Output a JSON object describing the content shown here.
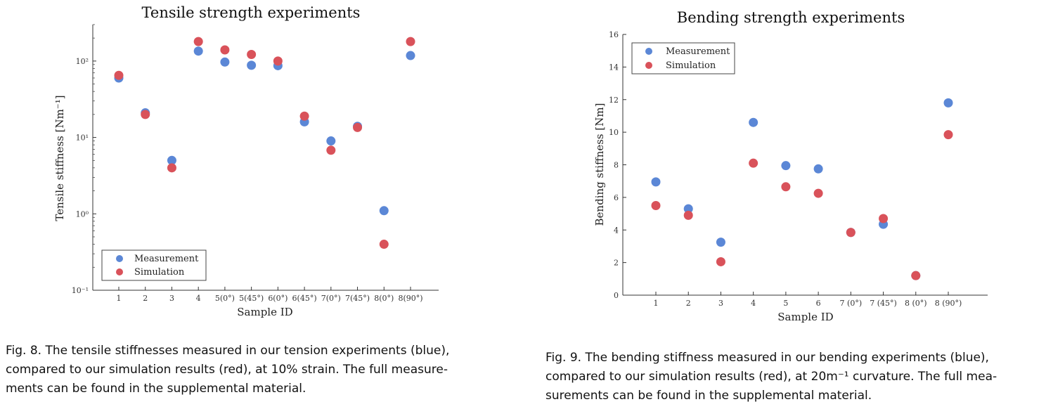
{
  "chart_data": [
    {
      "type": "scatter",
      "title": "Tensile strength experiments",
      "xlabel": "Sample ID",
      "ylabel": "Tensile stiffness [Nm⁻¹]",
      "yscale": "log",
      "ylim": [
        0.1,
        300
      ],
      "yticks": [
        0.1,
        1,
        10,
        100
      ],
      "ytick_labels": [
        "10⁻¹",
        "10⁰",
        "10¹",
        "10²"
      ],
      "categories": [
        "1",
        "2",
        "3",
        "4",
        "5(0°)",
        "5(45°)",
        "6(0°)",
        "6(45°)",
        "7(0°)",
        "7(45°)",
        "8(0°)",
        "8(90°)"
      ],
      "legend_position": "bottom-left",
      "grid": false,
      "series": [
        {
          "name": "Measurement",
          "color": "#5b87d6",
          "values": [
            60,
            21,
            5,
            135,
            97,
            88,
            87,
            16,
            9,
            14,
            1.1,
            118
          ]
        },
        {
          "name": "Simulation",
          "color": "#d9525a",
          "values": [
            65,
            20,
            4,
            180,
            140,
            122,
            100,
            19,
            6.8,
            13.5,
            0.4,
            180
          ]
        }
      ]
    },
    {
      "type": "scatter",
      "title": "Bending strength experiments",
      "xlabel": "Sample ID",
      "ylabel": "Bending stiffness [Nm]",
      "yscale": "linear",
      "ylim": [
        0,
        16
      ],
      "yticks": [
        0,
        2,
        4,
        6,
        8,
        10,
        12,
        14,
        16
      ],
      "ytick_labels": [
        "0",
        "2",
        "4",
        "6",
        "8",
        "10",
        "12",
        "14",
        "16"
      ],
      "categories": [
        "1",
        "2",
        "3",
        "4",
        "5",
        "6",
        "7 (0°)",
        "7 (45°)",
        "8 (0°)",
        "8 (90°)"
      ],
      "legend_position": "top-left",
      "grid": false,
      "series": [
        {
          "name": "Measurement",
          "color": "#5b87d6",
          "values": [
            6.95,
            5.3,
            3.25,
            10.6,
            7.95,
            7.75,
            3.85,
            4.35,
            1.2,
            11.8
          ]
        },
        {
          "name": "Simulation",
          "color": "#d9525a",
          "values": [
            5.5,
            4.9,
            2.05,
            8.1,
            6.65,
            6.25,
            3.85,
            4.7,
            1.2,
            9.85
          ]
        }
      ]
    }
  ],
  "captions": {
    "fig8": [
      "Fig. 8.  The tensile stiffnesses measured in our tension experiments (blue),",
      "compared to our simulation results (red), at 10% strain. The full measure-",
      "ments can be found in the supplemental material."
    ],
    "fig9": [
      "Fig. 9.  The bending stiffness measured in our bending experiments (blue),",
      "compared to our simulation results (red), at 20m⁻¹ curvature. The full mea-",
      "surements can be found in the supplemental material."
    ]
  }
}
